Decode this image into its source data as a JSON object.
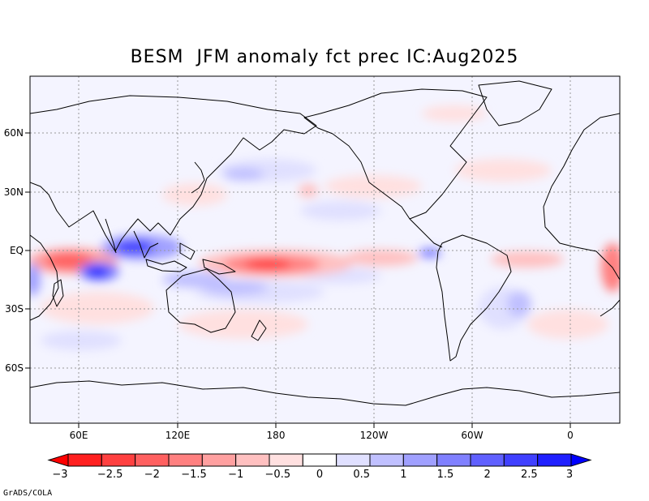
{
  "title": "BESM  JFM anomaly fct prec IC:Aug2025",
  "credit": "GrADS/COLA",
  "map": {
    "lat_labels": [
      "60N",
      "30N",
      "EQ",
      "30S",
      "60S"
    ],
    "lon_labels": [
      "60E",
      "120E",
      "180",
      "120W",
      "60W",
      "0"
    ]
  },
  "colorbar": {
    "labels": [
      "−3",
      "−2.5",
      "−2",
      "−1.5",
      "−1",
      "−0.5",
      "0",
      "0.5",
      "1",
      "1.5",
      "2",
      "2.5",
      "3"
    ],
    "colors": [
      "#ff0000",
      "#ff2020",
      "#ff4040",
      "#ff6060",
      "#ff8080",
      "#ffa0a0",
      "#ffc0c0",
      "#ffe0e0",
      "#ffffff",
      "#e0e0ff",
      "#c0c0ff",
      "#a0a0ff",
      "#8080ff",
      "#6060ff",
      "#4040ff",
      "#2020ff",
      "#0000ff"
    ]
  },
  "colors": {
    "background": "#f4f4ff",
    "frame": "#000000",
    "coast": "#000000"
  }
}
